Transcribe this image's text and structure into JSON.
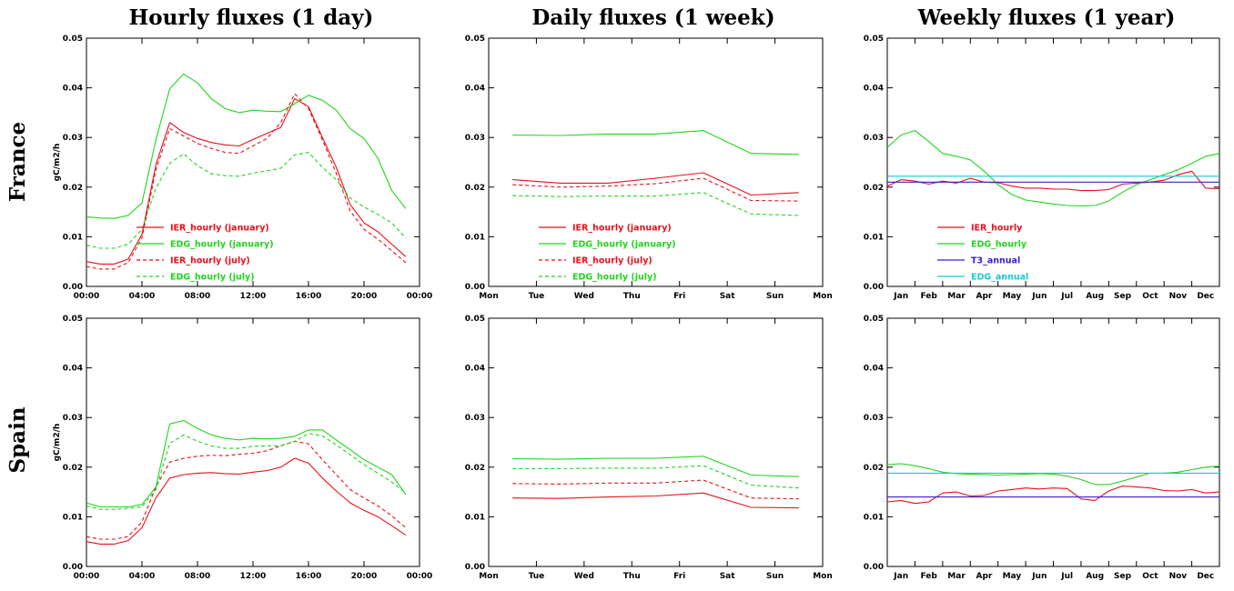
{
  "figure": {
    "column_titles": [
      "Hourly fluxes (1 day)",
      "Daily fluxes (1 week)",
      "Weekly fluxes (1 year)"
    ],
    "row_titles": [
      "France",
      "Spain"
    ],
    "ylabel": "gC/m2/h",
    "colors": {
      "red": "#e8101a",
      "green": "#22d41e",
      "blue": "#3a1fd6",
      "cyan": "#18c8d8"
    }
  },
  "chart_data": [
    {
      "type": "line",
      "row": "France",
      "title": "Hourly fluxes (1 day)",
      "ylim": [
        0,
        0.05
      ],
      "yticks": [
        "0.00",
        "0.01",
        "0.02",
        "0.03",
        "0.04",
        "0.05"
      ],
      "xlim": [
        0,
        24
      ],
      "xticks": [
        "00:00",
        "04:00",
        "08:00",
        "12:00",
        "16:00",
        "20:00",
        "00:00"
      ],
      "x": [
        0,
        1,
        2,
        3,
        4,
        5,
        6,
        7,
        8,
        9,
        10,
        11,
        12,
        13,
        14,
        15,
        16,
        17,
        18,
        19,
        20,
        21,
        22,
        23
      ],
      "legend": "bottom-left",
      "series": [
        {
          "name": "IER_hourly (january)",
          "color": "red",
          "dash": false,
          "values": [
            0.005,
            0.0045,
            0.0045,
            0.0055,
            0.0105,
            0.0245,
            0.033,
            0.031,
            0.0298,
            0.029,
            0.0285,
            0.0283,
            0.0296,
            0.0308,
            0.032,
            0.0378,
            0.0362,
            0.03,
            0.024,
            0.0165,
            0.0128,
            0.011,
            0.0085,
            0.006
          ]
        },
        {
          "name": "EDG_hourly (january)",
          "color": "green",
          "dash": false,
          "values": [
            0.014,
            0.0138,
            0.0137,
            0.0143,
            0.0168,
            0.0295,
            0.0398,
            0.0428,
            0.041,
            0.0378,
            0.0358,
            0.035,
            0.0355,
            0.0353,
            0.0352,
            0.0368,
            0.0385,
            0.0375,
            0.0355,
            0.0318,
            0.0298,
            0.0258,
            0.0193,
            0.0157
          ]
        },
        {
          "name": "IER_hourly (july)",
          "color": "red",
          "dash": true,
          "values": [
            0.004,
            0.0035,
            0.0035,
            0.0048,
            0.0098,
            0.0235,
            0.0318,
            0.0303,
            0.0288,
            0.0278,
            0.027,
            0.0268,
            0.0283,
            0.0298,
            0.033,
            0.0388,
            0.0358,
            0.0295,
            0.0228,
            0.0152,
            0.0115,
            0.0095,
            0.0072,
            0.0048
          ]
        },
        {
          "name": "EDG_hourly (july)",
          "color": "green",
          "dash": true,
          "values": [
            0.0083,
            0.0077,
            0.0077,
            0.0085,
            0.0115,
            0.0198,
            0.0248,
            0.0267,
            0.0243,
            0.0227,
            0.0223,
            0.0222,
            0.0228,
            0.0233,
            0.0238,
            0.0265,
            0.027,
            0.024,
            0.0215,
            0.0178,
            0.016,
            0.0145,
            0.0128,
            0.0097
          ]
        }
      ]
    },
    {
      "type": "line",
      "row": "France",
      "title": "Daily fluxes (1 week)",
      "ylim": [
        0,
        0.05
      ],
      "yticks": [
        "0.00",
        "0.01",
        "0.02",
        "0.03",
        "0.04",
        "0.05"
      ],
      "xlim": [
        0,
        7
      ],
      "xticks": [
        "Mon",
        "Tue",
        "Wed",
        "Thu",
        "Fri",
        "Sat",
        "Sun",
        "Mon"
      ],
      "x": [
        0.5,
        1.5,
        2.5,
        3.5,
        4.5,
        5.5,
        6.5
      ],
      "legend": "bottom-left",
      "series": [
        {
          "name": "IER_hourly (january)",
          "color": "red",
          "dash": false,
          "values": [
            0.0215,
            0.0208,
            0.0208,
            0.0218,
            0.0229,
            0.0184,
            0.0189
          ]
        },
        {
          "name": "EDG_hourly (january)",
          "color": "green",
          "dash": false,
          "values": [
            0.0305,
            0.0304,
            0.0307,
            0.0307,
            0.0314,
            0.0268,
            0.0266
          ]
        },
        {
          "name": "IER_hourly (july)",
          "color": "red",
          "dash": true,
          "values": [
            0.0205,
            0.02,
            0.0202,
            0.0207,
            0.0218,
            0.0173,
            0.0172
          ]
        },
        {
          "name": "EDG_hourly (july)",
          "color": "green",
          "dash": true,
          "values": [
            0.0183,
            0.0181,
            0.0182,
            0.0182,
            0.0189,
            0.0146,
            0.0143
          ]
        }
      ]
    },
    {
      "type": "line",
      "row": "France",
      "title": "Weekly fluxes (1 year)",
      "ylim": [
        0,
        0.05
      ],
      "yticks": [
        "0.00",
        "0.01",
        "0.02",
        "0.03",
        "0.04",
        "0.05"
      ],
      "xlim": [
        0,
        12
      ],
      "xticks": [
        "Jan",
        "Feb",
        "Mar",
        "Apr",
        "May",
        "Jun",
        "Jul",
        "Aug",
        "Sep",
        "Oct",
        "Nov",
        "Dec"
      ],
      "x": [
        0,
        0.5,
        1,
        1.5,
        2,
        2.5,
        3,
        3.5,
        4,
        4.5,
        5,
        5.5,
        6,
        6.5,
        7,
        7.5,
        8,
        8.5,
        9,
        9.5,
        10,
        10.5,
        11,
        11.5,
        12
      ],
      "legend": "bottom-left",
      "series": [
        {
          "name": "IER_hourly",
          "color": "red",
          "dash": false,
          "values": [
            0.0202,
            0.0215,
            0.0212,
            0.0206,
            0.0212,
            0.0208,
            0.0218,
            0.021,
            0.0209,
            0.0202,
            0.0198,
            0.0198,
            0.0196,
            0.0196,
            0.0193,
            0.0193,
            0.0195,
            0.0206,
            0.0208,
            0.021,
            0.0214,
            0.0225,
            0.0232,
            0.0198,
            0.0197
          ]
        },
        {
          "name": "EDG_hourly",
          "color": "green",
          "dash": false,
          "values": [
            0.028,
            0.0305,
            0.0314,
            0.0292,
            0.0268,
            0.0262,
            0.0255,
            0.0232,
            0.0205,
            0.0185,
            0.0174,
            0.017,
            0.0166,
            0.0163,
            0.0162,
            0.0163,
            0.0172,
            0.019,
            0.0205,
            0.0215,
            0.0225,
            0.0235,
            0.0248,
            0.0262,
            0.0268
          ]
        },
        {
          "name": "T3_annual",
          "color": "blue",
          "dash": false,
          "values": [
            0.021,
            0.021,
            0.021,
            0.021,
            0.021,
            0.021,
            0.021,
            0.021,
            0.021,
            0.021,
            0.021,
            0.021,
            0.021,
            0.021,
            0.021,
            0.021,
            0.021,
            0.021,
            0.021,
            0.021,
            0.021,
            0.021,
            0.021,
            0.021,
            0.021
          ]
        },
        {
          "name": "EDG_annual",
          "color": "cyan",
          "dash": false,
          "values": [
            0.0222,
            0.0222,
            0.0222,
            0.0222,
            0.0222,
            0.0222,
            0.0222,
            0.0222,
            0.0222,
            0.0222,
            0.0222,
            0.0222,
            0.0222,
            0.0222,
            0.0222,
            0.0222,
            0.0222,
            0.0222,
            0.0222,
            0.0222,
            0.0222,
            0.0222,
            0.0222,
            0.0222,
            0.0222
          ]
        }
      ]
    },
    {
      "type": "line",
      "row": "Spain",
      "title": "Hourly fluxes (1 day)",
      "ylim": [
        0,
        0.05
      ],
      "yticks": [
        "0.00",
        "0.01",
        "0.02",
        "0.03",
        "0.04",
        "0.05"
      ],
      "xlim": [
        0,
        24
      ],
      "xticks": [
        "00:00",
        "04:00",
        "08:00",
        "12:00",
        "16:00",
        "20:00",
        "00:00"
      ],
      "x": [
        0,
        1,
        2,
        3,
        4,
        5,
        6,
        7,
        8,
        9,
        10,
        11,
        12,
        13,
        14,
        15,
        16,
        17,
        18,
        19,
        20,
        21,
        22,
        23
      ],
      "series": [
        {
          "color": "red",
          "dash": false,
          "values": [
            0.005,
            0.0045,
            0.0045,
            0.0052,
            0.0078,
            0.0138,
            0.0178,
            0.0185,
            0.0188,
            0.0189,
            0.0187,
            0.0186,
            0.019,
            0.0193,
            0.02,
            0.0218,
            0.0208,
            0.0178,
            0.0152,
            0.0128,
            0.0113,
            0.01,
            0.0082,
            0.0063
          ]
        },
        {
          "color": "green",
          "dash": false,
          "values": [
            0.0128,
            0.012,
            0.012,
            0.012,
            0.0125,
            0.016,
            0.0287,
            0.0294,
            0.0278,
            0.0265,
            0.0258,
            0.0255,
            0.0258,
            0.0257,
            0.0258,
            0.0262,
            0.0275,
            0.0275,
            0.0255,
            0.0235,
            0.0215,
            0.02,
            0.0185,
            0.0145
          ]
        },
        {
          "color": "red",
          "dash": true,
          "values": [
            0.006,
            0.0055,
            0.0055,
            0.006,
            0.009,
            0.016,
            0.021,
            0.0218,
            0.0222,
            0.0224,
            0.0223,
            0.0226,
            0.0228,
            0.0233,
            0.0243,
            0.0252,
            0.0247,
            0.0215,
            0.0185,
            0.0155,
            0.0138,
            0.0122,
            0.0102,
            0.0078
          ]
        },
        {
          "color": "green",
          "dash": true,
          "values": [
            0.0122,
            0.0115,
            0.0115,
            0.0117,
            0.012,
            0.0155,
            0.0248,
            0.0265,
            0.0252,
            0.0243,
            0.0238,
            0.0238,
            0.0242,
            0.0243,
            0.0243,
            0.0252,
            0.0268,
            0.0263,
            0.0245,
            0.0225,
            0.0205,
            0.0188,
            0.017,
            0.0148
          ]
        }
      ]
    },
    {
      "type": "line",
      "row": "Spain",
      "title": "Daily fluxes (1 week)",
      "ylim": [
        0,
        0.05
      ],
      "yticks": [
        "0.00",
        "0.01",
        "0.02",
        "0.03",
        "0.04",
        "0.05"
      ],
      "xlim": [
        0,
        7
      ],
      "xticks": [
        "Mon",
        "Tue",
        "Wed",
        "Thu",
        "Fri",
        "Sat",
        "Sun",
        "Mon"
      ],
      "x": [
        0.5,
        1.5,
        2.5,
        3.5,
        4.5,
        5.5,
        6.5
      ],
      "series": [
        {
          "color": "red",
          "dash": false,
          "values": [
            0.0138,
            0.0137,
            0.014,
            0.0142,
            0.0148,
            0.0119,
            0.0118
          ]
        },
        {
          "color": "green",
          "dash": false,
          "values": [
            0.0217,
            0.0216,
            0.0218,
            0.0218,
            0.0222,
            0.0184,
            0.0181
          ]
        },
        {
          "color": "red",
          "dash": true,
          "values": [
            0.0167,
            0.0166,
            0.0168,
            0.0168,
            0.0174,
            0.0138,
            0.0136
          ]
        },
        {
          "color": "green",
          "dash": true,
          "values": [
            0.0197,
            0.0197,
            0.0198,
            0.0198,
            0.0203,
            0.0164,
            0.0158
          ]
        }
      ]
    },
    {
      "type": "line",
      "row": "Spain",
      "title": "Weekly fluxes (1 year)",
      "ylim": [
        0,
        0.05
      ],
      "yticks": [
        "0.00",
        "0.01",
        "0.02",
        "0.03",
        "0.04",
        "0.05"
      ],
      "xlim": [
        0,
        12
      ],
      "xticks": [
        "Jan",
        "Feb",
        "Mar",
        "Apr",
        "May",
        "Jun",
        "Jul",
        "Aug",
        "Sep",
        "Oct",
        "Nov",
        "Dec"
      ],
      "x": [
        0,
        0.5,
        1,
        1.5,
        2,
        2.5,
        3,
        3.5,
        4,
        4.5,
        5,
        5.5,
        6,
        6.5,
        7,
        7.5,
        8,
        8.5,
        9,
        9.5,
        10,
        10.5,
        11,
        11.5,
        12
      ],
      "series": [
        {
          "color": "red",
          "dash": false,
          "values": [
            0.013,
            0.0133,
            0.0127,
            0.013,
            0.0148,
            0.015,
            0.0142,
            0.0143,
            0.0152,
            0.0155,
            0.0158,
            0.0156,
            0.0158,
            0.0157,
            0.0136,
            0.0133,
            0.0152,
            0.0162,
            0.016,
            0.0158,
            0.0153,
            0.0152,
            0.0155,
            0.0148,
            0.015
          ]
        },
        {
          "color": "green",
          "dash": false,
          "values": [
            0.0205,
            0.0207,
            0.0203,
            0.0197,
            0.019,
            0.0187,
            0.0186,
            0.0185,
            0.0184,
            0.0185,
            0.0186,
            0.0187,
            0.0186,
            0.0182,
            0.0175,
            0.0165,
            0.0165,
            0.0172,
            0.018,
            0.0188,
            0.0188,
            0.019,
            0.0195,
            0.02,
            0.0202
          ]
        },
        {
          "color": "blue",
          "dash": false,
          "values": [
            0.014,
            0.014,
            0.014,
            0.014,
            0.014,
            0.014,
            0.014,
            0.014,
            0.014,
            0.014,
            0.014,
            0.014,
            0.014,
            0.014,
            0.014,
            0.014,
            0.014,
            0.014,
            0.014,
            0.014,
            0.014,
            0.014,
            0.014,
            0.014,
            0.014
          ]
        },
        {
          "color": "cyan",
          "dash": false,
          "values": [
            0.0188,
            0.0188,
            0.0188,
            0.0188,
            0.0188,
            0.0188,
            0.0188,
            0.0188,
            0.0188,
            0.0188,
            0.0188,
            0.0188,
            0.0188,
            0.0188,
            0.0188,
            0.0188,
            0.0188,
            0.0188,
            0.0188,
            0.0188,
            0.0188,
            0.0188,
            0.0188,
            0.0188,
            0.0188
          ]
        }
      ]
    }
  ]
}
